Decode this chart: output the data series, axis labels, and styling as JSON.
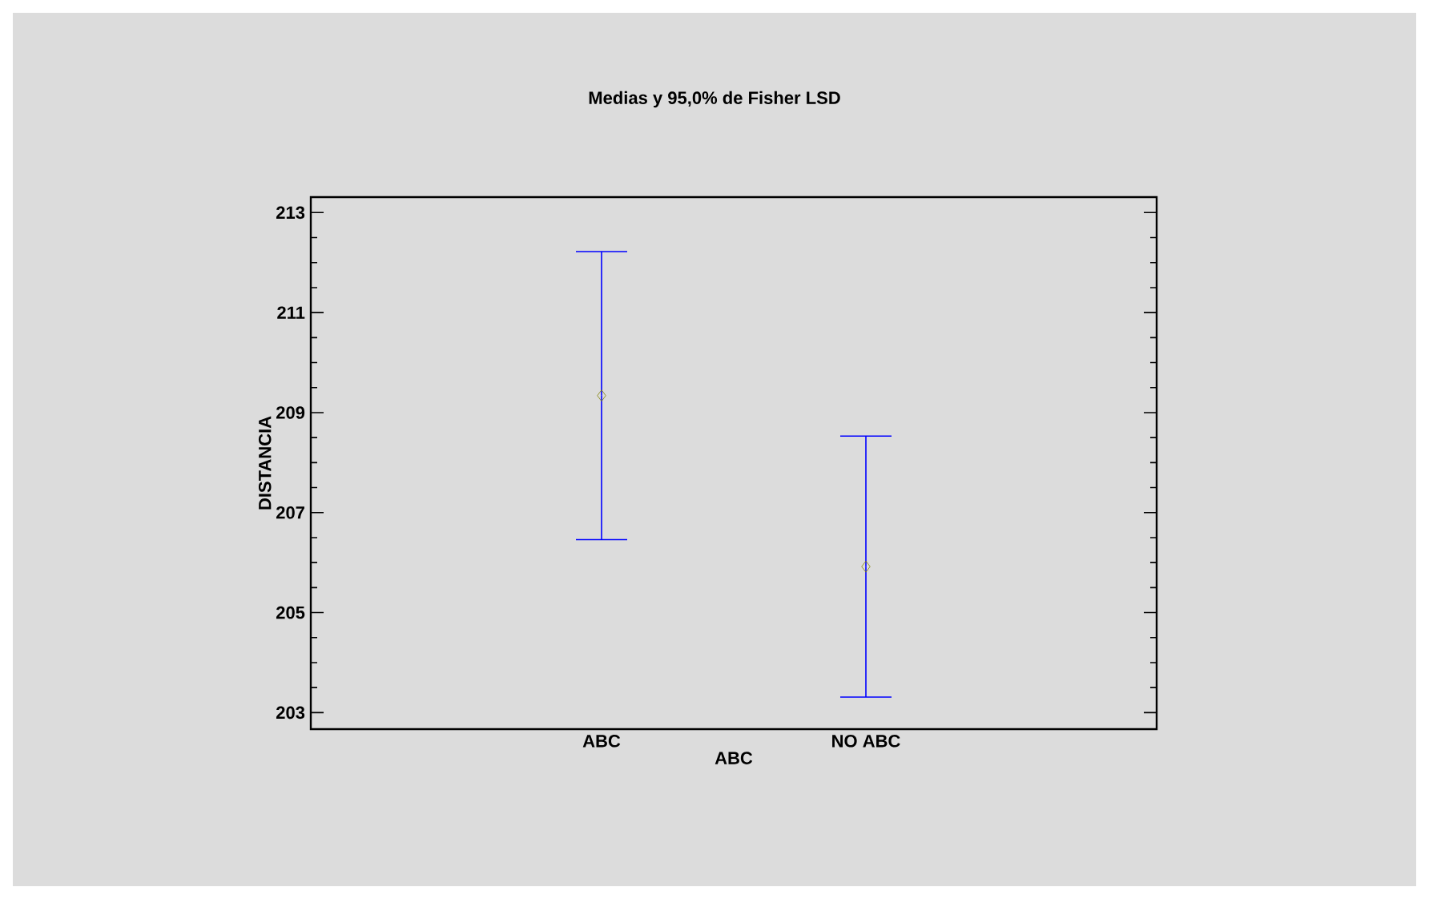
{
  "chart_data": {
    "type": "scatter",
    "title": "Medias y 95,0% de Fisher LSD",
    "xlabel": "ABC",
    "ylabel": "DISTANCIA",
    "categories": [
      "ABC",
      "NO ABC"
    ],
    "series": [
      {
        "color": "#808000",
        "values": [
          209.34,
          205.92
        ],
        "errors": [
          2.88,
          2.61
        ]
      }
    ],
    "marker": "diamond",
    "ylim": [
      202.67,
      213.31
    ],
    "yticks": [
      203,
      205,
      207,
      209,
      211,
      213
    ]
  }
}
